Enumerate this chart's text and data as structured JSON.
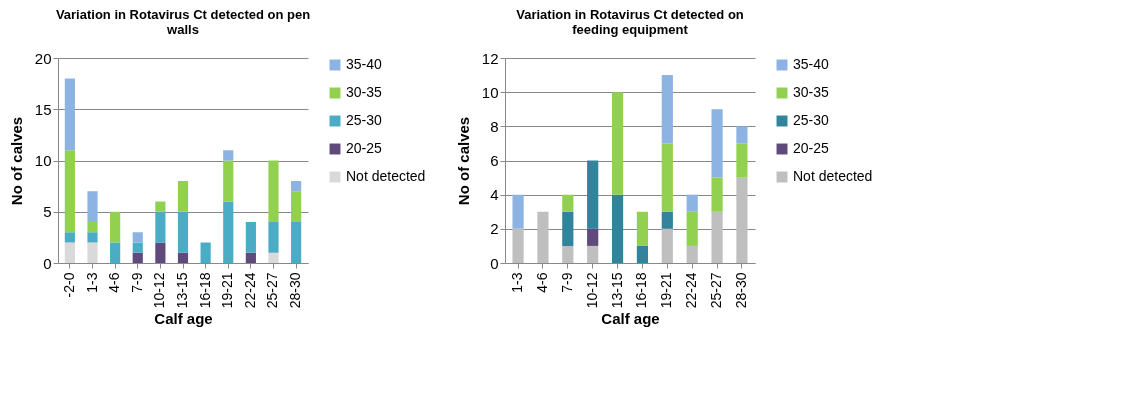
{
  "chart_data": [
    {
      "type": "bar",
      "stacked": true,
      "title": "Variation in Rotavirus Ct detected on pen walls",
      "xlabel": "Calf age",
      "ylabel": "No of calves",
      "categories": [
        "-2-0",
        "1-3",
        "4-6",
        "7-9",
        "10-12",
        "13-15",
        "16-18",
        "19-21",
        "22-24",
        "25-27",
        "28-30"
      ],
      "ylim": [
        0,
        20
      ],
      "yticks": [
        0,
        5,
        10,
        15,
        20
      ],
      "grid": "y",
      "legend": "right",
      "series": [
        {
          "name": "Not detected",
          "color": "#d9d9d9",
          "values": [
            2,
            2,
            0,
            0,
            0,
            0,
            0,
            0,
            0,
            1,
            0
          ]
        },
        {
          "name": "20-25",
          "color": "#604a7b",
          "values": [
            0,
            0,
            0,
            1,
            2,
            1,
            0,
            0,
            1,
            0,
            0
          ]
        },
        {
          "name": "25-30",
          "color": "#4bacc6",
          "values": [
            1,
            1,
            2,
            1,
            3,
            4,
            2,
            6,
            3,
            3,
            4
          ]
        },
        {
          "name": "30-35",
          "color": "#92d050",
          "values": [
            8,
            1,
            3,
            0,
            1,
            3,
            0,
            4,
            0,
            6,
            3
          ]
        },
        {
          "name": "35-40",
          "color": "#8db3e2",
          "values": [
            7,
            3,
            0,
            1,
            0,
            0,
            0,
            1,
            0,
            0,
            1
          ]
        }
      ]
    },
    {
      "type": "bar",
      "stacked": true,
      "title": "Variation in Rotavirus Ct detected  on feeding equipment",
      "xlabel": "Calf age",
      "ylabel": "No of calves",
      "categories": [
        "1-3",
        "4-6",
        "7-9",
        "10-12",
        "13-15",
        "16-18",
        "19-21",
        "22-24",
        "25-27",
        "28-30"
      ],
      "ylim": [
        0,
        12
      ],
      "yticks": [
        0,
        2,
        4,
        6,
        8,
        10,
        12
      ],
      "grid": "y",
      "legend": "right",
      "series": [
        {
          "name": "Not detected",
          "color": "#bfbfbf",
          "values": [
            2,
            3,
            1,
            1,
            0,
            0,
            2,
            1,
            3,
            5
          ]
        },
        {
          "name": "20-25",
          "color": "#604a7b",
          "values": [
            0,
            0,
            0,
            1,
            0,
            0,
            0,
            0,
            0,
            0
          ]
        },
        {
          "name": "25-30",
          "color": "#31849b",
          "values": [
            0,
            0,
            2,
            4,
            4,
            1,
            1,
            0,
            0,
            0
          ]
        },
        {
          "name": "30-35",
          "color": "#92d050",
          "values": [
            0,
            0,
            1,
            0,
            6,
            2,
            4,
            2,
            2,
            2
          ]
        },
        {
          "name": "35-40",
          "color": "#8db3e2",
          "values": [
            2,
            0,
            0,
            0,
            0,
            0,
            4,
            1,
            4,
            1
          ]
        }
      ]
    }
  ]
}
